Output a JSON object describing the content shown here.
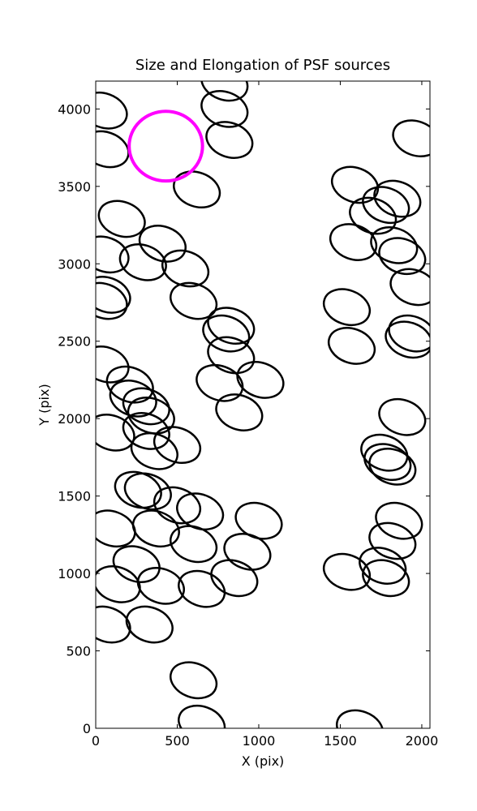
{
  "chart_data": {
    "type": "ellipse",
    "title": "Size and Elongation of PSF sources",
    "x_label": "X (pix)",
    "y_label": "Y (pix)",
    "xlim": [
      0,
      2050
    ],
    "ylim": [
      0,
      4180
    ],
    "xticks": [
      0,
      500,
      1000,
      1500,
      2000
    ],
    "yticks": [
      0,
      500,
      1000,
      1500,
      2000,
      2500,
      3000,
      3500,
      4000
    ],
    "ellipses": {
      "color": "#000000",
      "width": 290,
      "height": 220,
      "angle": -20,
      "x": [
        50,
        60,
        790,
        790,
        820,
        1965,
        620,
        1590,
        1850,
        1780,
        1700,
        160,
        410,
        290,
        60,
        550,
        1580,
        1830,
        1880,
        1950,
        70,
        50,
        600,
        830,
        800,
        830,
        1540,
        1570,
        1940,
        1920,
        60,
        210,
        760,
        1010,
        230,
        310,
        340,
        880,
        1880,
        95,
        310,
        360,
        500,
        1770,
        1820,
        1790,
        260,
        320,
        500,
        640,
        100,
        370,
        1000,
        1860,
        1820,
        600,
        930,
        250,
        1540,
        1760,
        1780,
        130,
        400,
        650,
        850,
        70,
        330,
        600,
        650,
        1620
      ],
      "y": [
        3990,
        3740,
        4170,
        4000,
        3800,
        3810,
        3480,
        3510,
        3420,
        3380,
        3310,
        3290,
        3130,
        3010,
        3060,
        2970,
        3140,
        3120,
        3050,
        2850,
        2800,
        2760,
        2760,
        2600,
        2550,
        2410,
        2720,
        2470,
        2550,
        2510,
        2350,
        2220,
        2230,
        2250,
        2130,
        2080,
        2020,
        2040,
        2010,
        1910,
        1920,
        1790,
        1830,
        1780,
        1690,
        1720,
        1540,
        1530,
        1440,
        1400,
        1290,
        1290,
        1340,
        1340,
        1210,
        1190,
        1140,
        1060,
        1010,
        1050,
        970,
        930,
        920,
        900,
        970,
        670,
        670,
        310,
        30,
        0
      ]
    },
    "marker": {
      "color": "#ff00ff",
      "x": 430,
      "y": 3760,
      "radius": 225
    }
  }
}
